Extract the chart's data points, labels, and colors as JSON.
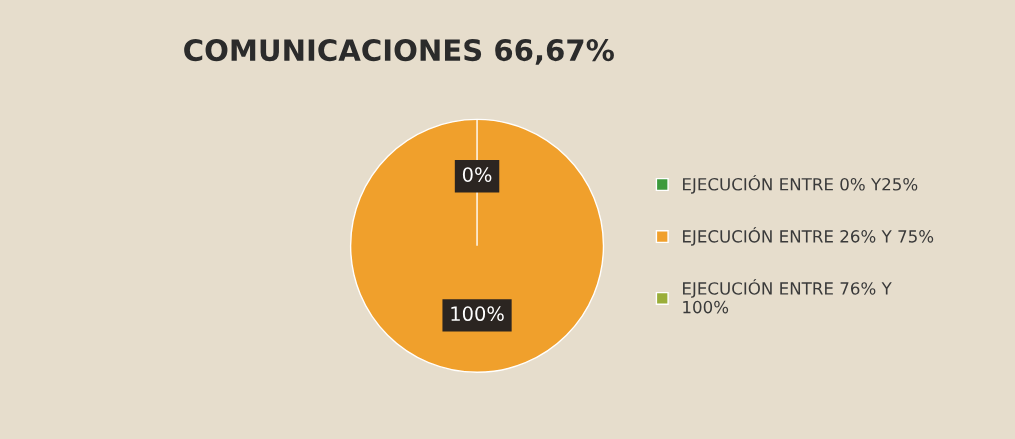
{
  "chart_data": {
    "type": "pie",
    "title": "COMUNICACIONES 66,67%",
    "categories": [
      "EJECUCIÓN ENTRE 0% Y25%",
      "EJECUCIÓN ENTRE 26% Y 75%",
      "EJECUCIÓN ENTRE 76% Y\n100%"
    ],
    "values": [
      0,
      100,
      0
    ],
    "colors": [
      "#3c9a3c",
      "#f0a02c",
      "#9aae3a"
    ],
    "value_labels": [
      "0%",
      "100%",
      null
    ],
    "legend": "right"
  }
}
